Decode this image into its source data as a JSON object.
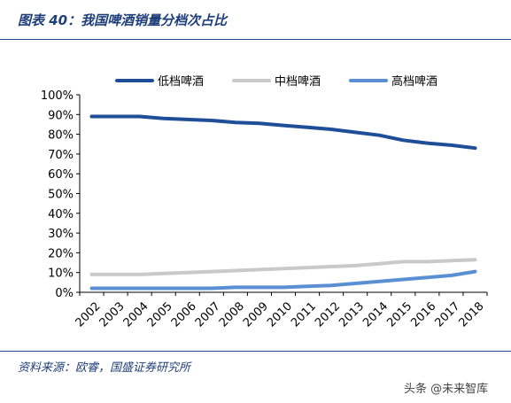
{
  "header": {
    "title": "图表 40：我国啤酒销量分档次占比"
  },
  "footer": {
    "source": "资料来源：欧睿，国盛证券研究所",
    "watermark": "头条 @未来智库"
  },
  "chart_data": {
    "type": "line",
    "title": "",
    "xlabel": "",
    "ylabel": "",
    "categories": [
      "2002",
      "2003",
      "2004",
      "2005",
      "2006",
      "2007",
      "2008",
      "2009",
      "2010",
      "2011",
      "2012",
      "2013",
      "2014",
      "2015",
      "2016",
      "2017",
      "2018"
    ],
    "ylim": [
      0,
      100
    ],
    "yticks": [
      "0%",
      "10%",
      "20%",
      "30%",
      "40%",
      "50%",
      "60%",
      "70%",
      "80%",
      "90%",
      "100%"
    ],
    "grid": false,
    "legend_position": "top",
    "series": [
      {
        "name": "低档啤酒",
        "color": "#1f4e99",
        "values": [
          89,
          89,
          89,
          88,
          87.5,
          87,
          86,
          85.5,
          84.5,
          83.5,
          82.5,
          81,
          79.5,
          77,
          75.5,
          74.5,
          73
        ]
      },
      {
        "name": "中档啤酒",
        "color": "#c9c9c9",
        "values": [
          9,
          9,
          9,
          9.5,
          10,
          10.5,
          11,
          11.5,
          12,
          12.5,
          13,
          13.5,
          14.5,
          15.5,
          15.5,
          16,
          16.5
        ]
      },
      {
        "name": "高档啤酒",
        "color": "#5b8fd4",
        "values": [
          2,
          2,
          2,
          2,
          2,
          2,
          2.5,
          2.5,
          2.5,
          3,
          3.5,
          4.5,
          5.5,
          6.5,
          7.5,
          8.5,
          10.5
        ]
      }
    ]
  }
}
